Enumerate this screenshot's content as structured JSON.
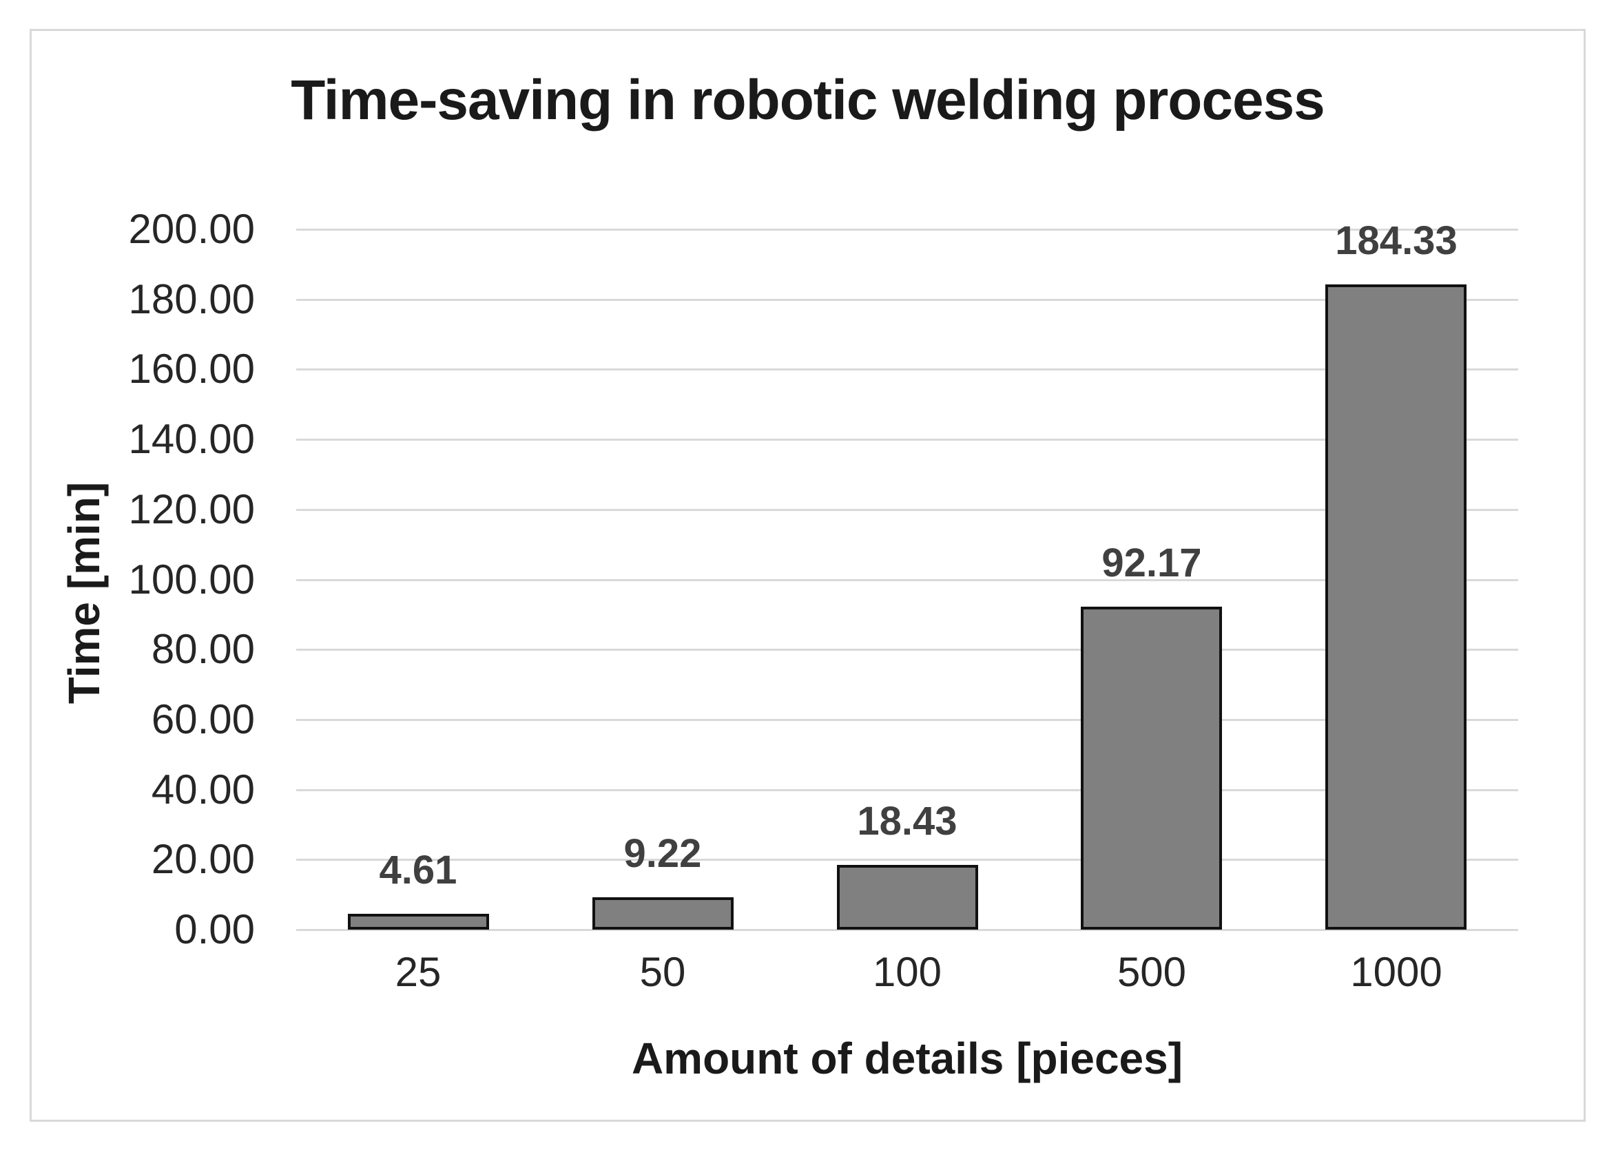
{
  "chart_data": {
    "type": "bar",
    "title": "Time-saving in robotic welding process",
    "xlabel": "Amount of details [pieces]",
    "ylabel": "Time [min]",
    "categories": [
      "25",
      "50",
      "100",
      "500",
      "1000"
    ],
    "values": [
      4.61,
      9.22,
      18.43,
      92.17,
      184.33
    ],
    "data_labels": [
      "4.61",
      "9.22",
      "18.43",
      "92.17",
      "184.33"
    ],
    "ylim": [
      0,
      200
    ],
    "ytick_step": 20,
    "ytick_labels": [
      "200.00",
      "180.00",
      "160.00",
      "140.00",
      "120.00",
      "100.00",
      "80.00",
      "60.00",
      "40.00",
      "20.00",
      "0.00"
    ],
    "grid": true,
    "legend": "none",
    "colors": {
      "bar_fill": "#808080",
      "bar_border": "#111111",
      "gridline": "#d9d9d9",
      "frame_border": "#d9d9d9",
      "background": "#ffffff",
      "tick_text": "#262626",
      "data_label_text": "#404040",
      "title_text": "#1a1a1a"
    }
  }
}
